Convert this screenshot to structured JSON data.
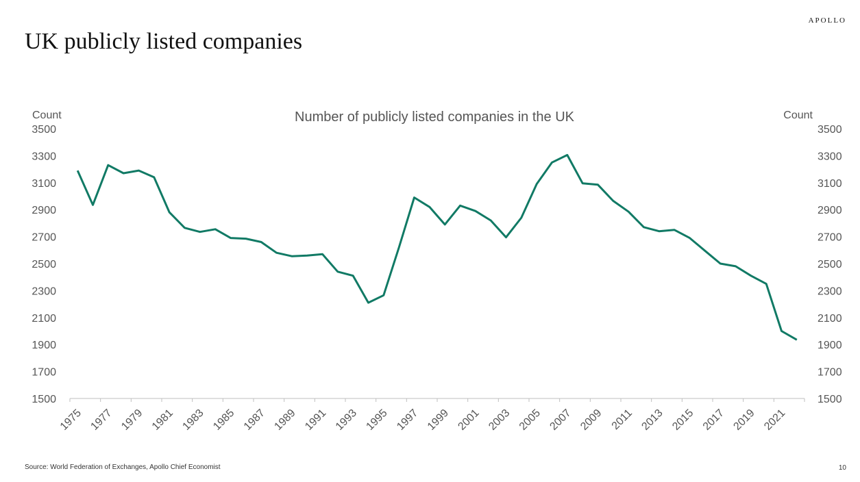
{
  "brand": "APOLLO",
  "slide_title": "UK publicly listed companies",
  "footer": {
    "source": "Source: World Federation of Exchanges, Apollo Chief Economist",
    "page_number": "10"
  },
  "colors": {
    "line": "#117a65",
    "axis": "#bfbfbf",
    "text": "#555555"
  },
  "chart_data": {
    "type": "line",
    "title": "Number of publicly listed companies in the UK",
    "ylabel_left": "Count",
    "ylabel_right": "Count",
    "ylim": [
      1500,
      3500
    ],
    "yticks": [
      1500,
      1700,
      1900,
      2100,
      2300,
      2500,
      2700,
      2900,
      3100,
      3300,
      3500
    ],
    "xtick_labels": [
      "1975",
      "1977",
      "1979",
      "1981",
      "1983",
      "1985",
      "1987",
      "1989",
      "1991",
      "1993",
      "1995",
      "1997",
      "1999",
      "2001",
      "2003",
      "2005",
      "2007",
      "2009",
      "2011",
      "2013",
      "2015",
      "2017",
      "2019",
      "2021"
    ],
    "grid": false,
    "series": [
      {
        "x": [
          1975,
          1976,
          1977,
          1978,
          1979,
          1980,
          1981,
          1982,
          1983,
          1984,
          1985,
          1986,
          1987,
          1988,
          1989,
          1990,
          1991,
          1992,
          1993,
          1994,
          1995,
          1996,
          1997,
          1998,
          1999,
          2000,
          2001,
          2002,
          2003,
          2004,
          2005,
          2006,
          2007,
          2008,
          2009,
          2010,
          2011,
          2012,
          2013,
          2014,
          2015,
          2016,
          2017,
          2018,
          2019,
          2020,
          2021,
          2022
        ],
        "y": [
          3190,
          2935,
          3230,
          3170,
          3190,
          3140,
          2880,
          2765,
          2735,
          2755,
          2690,
          2685,
          2660,
          2580,
          2555,
          2560,
          2570,
          2440,
          2410,
          2210,
          2265,
          2620,
          2990,
          2920,
          2790,
          2930,
          2890,
          2820,
          2695,
          2840,
          3090,
          3250,
          3305,
          3095,
          3085,
          2965,
          2885,
          2770,
          2740,
          2750,
          2690,
          2595,
          2500,
          2480,
          2410,
          2350,
          2000,
          1935
        ]
      }
    ]
  }
}
